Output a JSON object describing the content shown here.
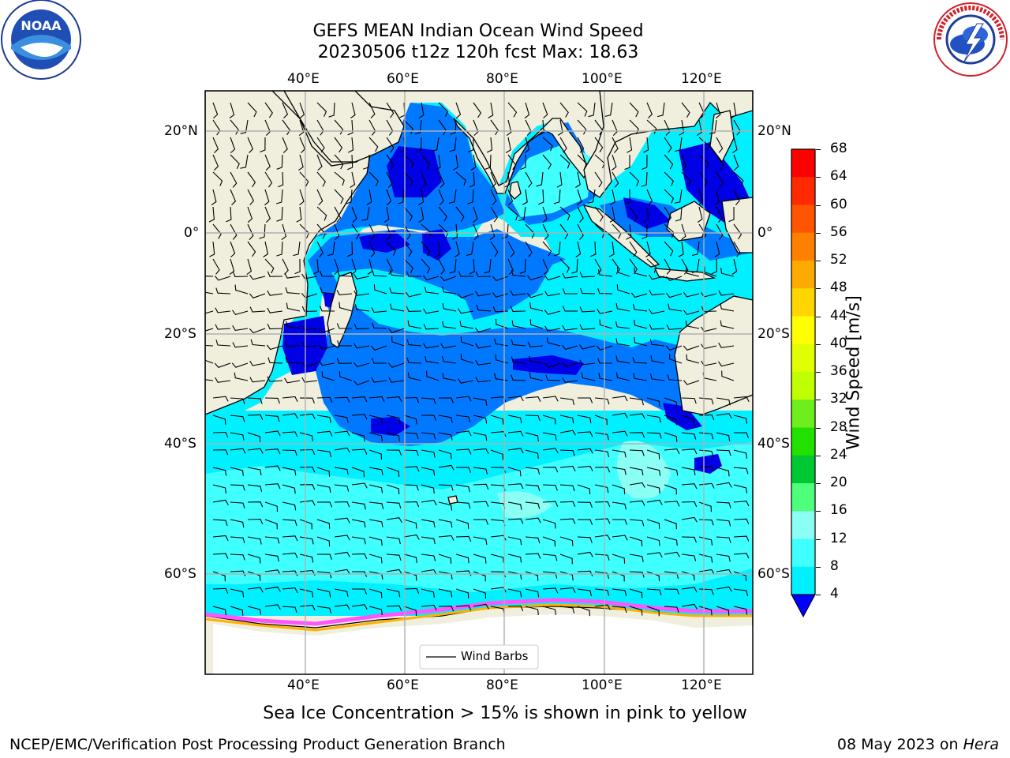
{
  "title": {
    "line1": "GEFS MEAN Indian Ocean Wind Speed",
    "line2": "20230506 t12z 120h fcst   Max: 18.63"
  },
  "axes": {
    "lon_labels": [
      "40°E",
      "60°E",
      "80°E",
      "100°E",
      "120°E"
    ],
    "lat_labels": [
      "20°N",
      "0°",
      "20°S",
      "40°S",
      "60°S"
    ],
    "lon_range": [
      20,
      130
    ],
    "lat_range": [
      -72,
      28
    ]
  },
  "colorbar": {
    "label": "Wind Speed [m/s]",
    "ticks": [
      "68",
      "64",
      "60",
      "56",
      "52",
      "48",
      "44",
      "40",
      "36",
      "32",
      "28",
      "24",
      "20",
      "16",
      "12",
      "8",
      "4"
    ],
    "colors": [
      "#ff0000",
      "#ff2a00",
      "#ff5500",
      "#ff8000",
      "#ffaa00",
      "#ffd500",
      "#ffff00",
      "#e0ff00",
      "#bfff00",
      "#6fee1e",
      "#22e000",
      "#00c832",
      "#4dff7a",
      "#8cfff5",
      "#40ffff",
      "#00f0ff",
      "#0078ff"
    ],
    "extend_color": "#0000ff"
  },
  "legend": {
    "label": "Wind Barbs"
  },
  "caption": "Sea Ice Concentration > 15% is shown in pink to yellow",
  "footer": {
    "left": "NCEP/EMC/Verification Post Processing Product Generation Branch",
    "right_prefix": "08 May 2023 on ",
    "right_italic": "Hera"
  },
  "logos": {
    "noaa": "NOAA",
    "nws": "NATIONAL WEATHER SERVICE"
  }
}
